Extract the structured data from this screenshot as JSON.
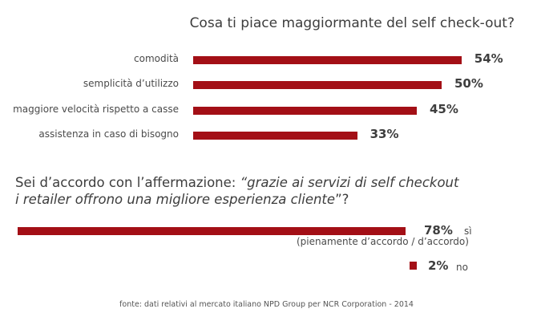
{
  "chart_data": [
    {
      "type": "bar",
      "orientation": "horizontal",
      "title": "Cosa ti piace maggiormante del self check-out?",
      "categories": [
        "comodità",
        "semplicità d’utilizzo",
        "maggiore velocità rispetto a casse",
        "assistenza in caso di bisogno"
      ],
      "values": [
        54,
        50,
        45,
        33
      ],
      "value_labels": [
        "54%",
        "50%",
        "45%",
        "33%"
      ],
      "xlim": [
        0,
        100
      ],
      "bar_color": "#a30f16",
      "grid": false
    },
    {
      "type": "bar",
      "orientation": "horizontal",
      "title_prefix": "Sei d’accordo con l’affermazione: ",
      "title_quote_line1": "“grazie ai servizi di self checkout",
      "title_quote_line2": "i retailer offrono una migliore esperienza cliente",
      "title_suffix": "”?",
      "categories": [
        "sì",
        "no"
      ],
      "category_note": "(pienamente d’accordo / d’accordo)",
      "values": [
        78,
        2
      ],
      "value_labels": [
        "78%",
        "2%"
      ],
      "xlim": [
        0,
        100
      ],
      "bar_color": "#a30f16",
      "grid": false
    }
  ],
  "footer": "fonte: dati relativi al mercato italiano NPD Group per NCR Corporation - 2014"
}
